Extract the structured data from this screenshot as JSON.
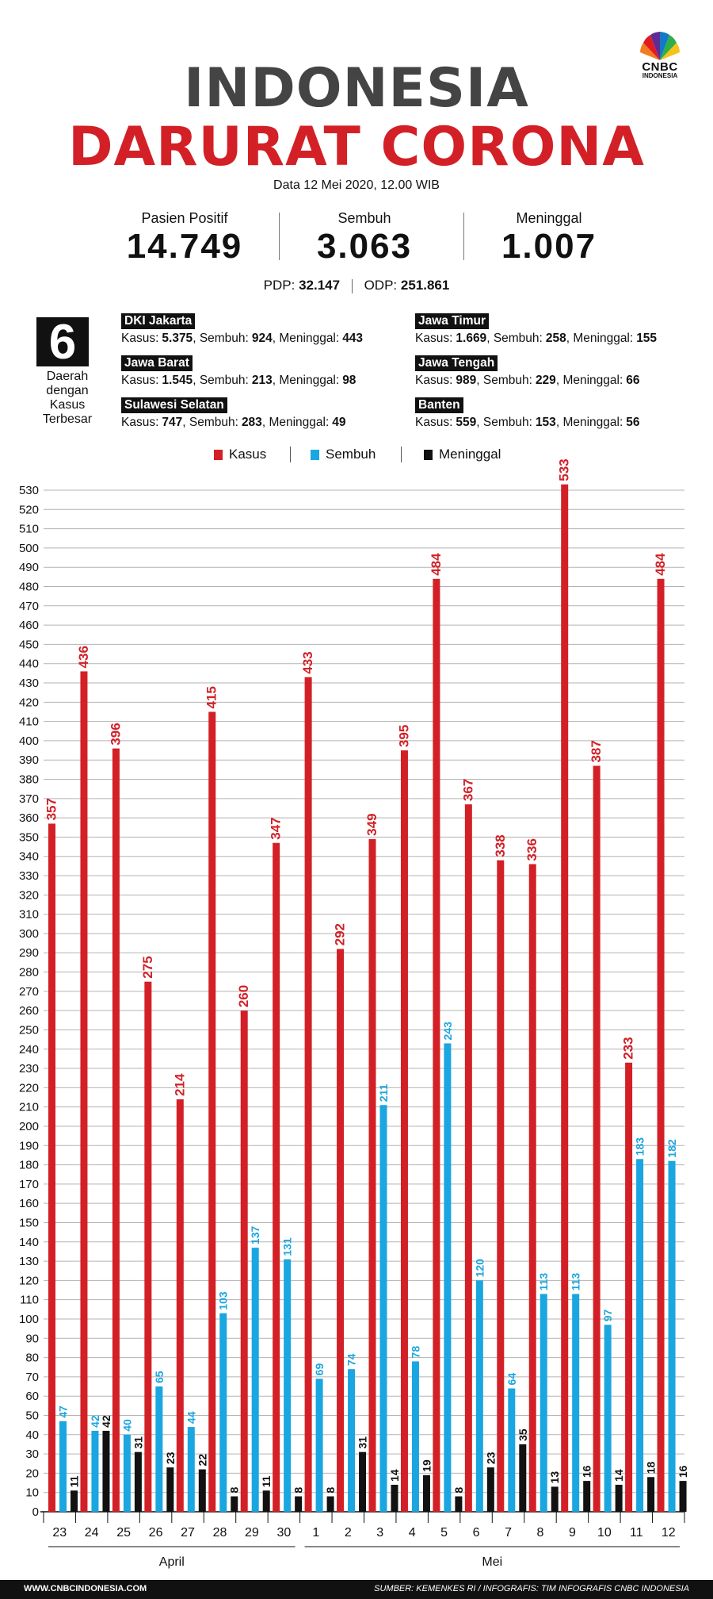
{
  "logo": {
    "text": "CNBC",
    "sub": "INDONESIA"
  },
  "header": {
    "title_line1": "INDONESIA",
    "title_line2": "DARURAT CORONA",
    "date": "Data 12 Mei 2020, 12.00 WIB"
  },
  "stats": [
    {
      "label": "Pasien Positif",
      "value": "14.749"
    },
    {
      "label": "Sembuh",
      "value": "3.063"
    },
    {
      "label": "Meninggal",
      "value": "1.007"
    }
  ],
  "pdp": {
    "pdp_label": "PDP:",
    "pdp_value": "32.147",
    "odp_label": "ODP:",
    "odp_value": "251.861"
  },
  "regions_summary": {
    "count": "6",
    "desc": "Daerah dengan Kasus Terbesar"
  },
  "regions": [
    {
      "name": "DKI Jakarta",
      "kasus": "5.375",
      "sembuh": "924",
      "meninggal": "443"
    },
    {
      "name": "Jawa Barat",
      "kasus": "1.545",
      "sembuh": "213",
      "meninggal": "98"
    },
    {
      "name": "Sulawesi Selatan",
      "kasus": "747",
      "sembuh": "283",
      "meninggal": "49"
    },
    {
      "name": "Jawa Timur",
      "kasus": "1.669",
      "sembuh": "258",
      "meninggal": "155"
    },
    {
      "name": "Jawa Tengah",
      "kasus": "989",
      "sembuh": "229",
      "meninggal": "66"
    },
    {
      "name": "Banten",
      "kasus": "559",
      "sembuh": "153",
      "meninggal": "56"
    }
  ],
  "region_labels": {
    "kasus": "Kasus:",
    "sembuh": "Sembuh:",
    "meninggal": "Meninggal:"
  },
  "colors": {
    "kasus": "#d32027",
    "sembuh": "#1aa6e0",
    "meninggal": "#111111",
    "grid": "#b3b3b3"
  },
  "chart_data": {
    "type": "bar",
    "categories": [
      "23",
      "24",
      "25",
      "26",
      "27",
      "28",
      "29",
      "30",
      "1",
      "2",
      "3",
      "4",
      "5",
      "6",
      "7",
      "8",
      "9",
      "10",
      "11",
      "12"
    ],
    "month_groups": [
      {
        "label": "April",
        "from": 0,
        "to": 7
      },
      {
        "label": "Mei",
        "from": 8,
        "to": 19
      }
    ],
    "series": [
      {
        "name": "Kasus",
        "values": [
          357,
          436,
          396,
          275,
          214,
          415,
          260,
          347,
          433,
          292,
          349,
          395,
          484,
          367,
          338,
          336,
          533,
          387,
          233,
          484
        ]
      },
      {
        "name": "Sembuh",
        "values": [
          47,
          42,
          40,
          65,
          44,
          103,
          137,
          131,
          69,
          74,
          211,
          78,
          243,
          120,
          64,
          113,
          113,
          97,
          183,
          182
        ]
      },
      {
        "name": "Meninggal",
        "values": [
          11,
          42,
          31,
          23,
          22,
          8,
          11,
          8,
          8,
          31,
          14,
          19,
          8,
          23,
          35,
          13,
          16,
          14,
          18,
          16
        ]
      }
    ],
    "ylim": [
      0,
      530
    ],
    "ytick_step": 10,
    "grid": true,
    "legend": "top-center"
  },
  "footer": {
    "left": "WWW.CNBCINDONESIA.COM",
    "right": "SUMBER: KEMENKES RI / INFOGRAFIS: TIM INFOGRAFIS CNBC INDONESIA"
  }
}
